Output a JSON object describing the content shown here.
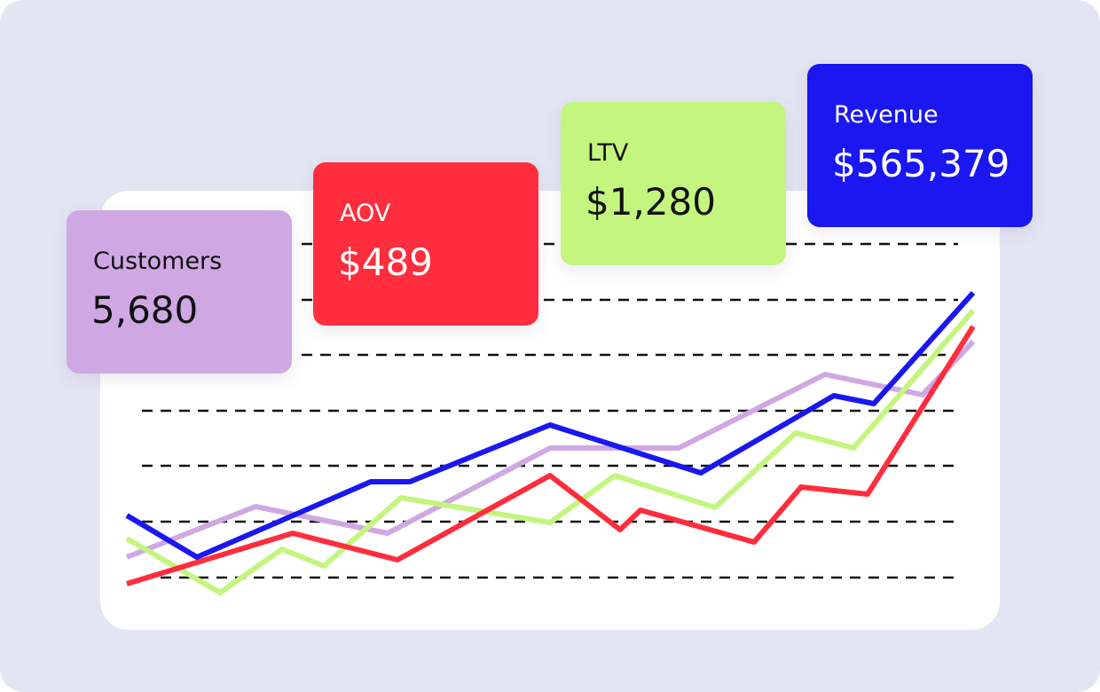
{
  "cards": [
    {
      "label": "Customers",
      "value": "5,680"
    },
    {
      "label": "AOV",
      "value": "$489"
    },
    {
      "label": "LTV",
      "value": "$1,280"
    },
    {
      "label": "Revenue",
      "value": "$565,379"
    }
  ]
}
